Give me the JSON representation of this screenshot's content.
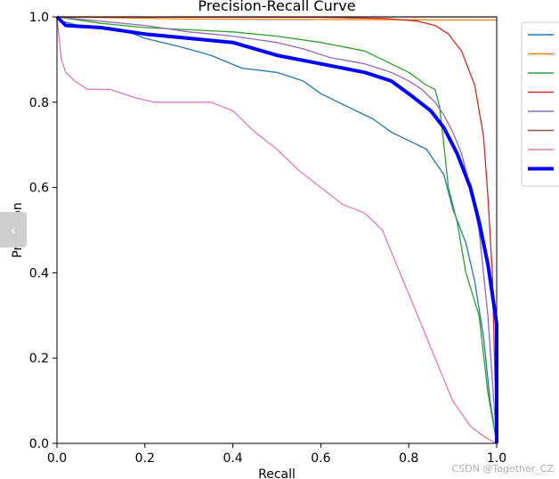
{
  "chart_data": {
    "type": "line",
    "title": "Precision-Recall Curve",
    "xlabel": "Recall",
    "ylabel": "Precision",
    "xlim": [
      0,
      1
    ],
    "ylim": [
      0,
      1
    ],
    "x_ticks": [
      "0.0",
      "0.2",
      "0.4",
      "0.6",
      "0.8",
      "1.0"
    ],
    "y_ticks": [
      "0.0",
      "0.2",
      "0.4",
      "0.6",
      "0.8",
      "1.0"
    ],
    "grid": false,
    "legend_position": "top-right",
    "series": [
      {
        "color": "#1f77b4",
        "points": [
          [
            0,
            1.0
          ],
          [
            0.01,
            0.99
          ],
          [
            0.05,
            0.98
          ],
          [
            0.1,
            0.975
          ],
          [
            0.15,
            0.97
          ],
          [
            0.2,
            0.95
          ],
          [
            0.28,
            0.93
          ],
          [
            0.35,
            0.91
          ],
          [
            0.42,
            0.88
          ],
          [
            0.5,
            0.87
          ],
          [
            0.56,
            0.85
          ],
          [
            0.6,
            0.82
          ],
          [
            0.66,
            0.79
          ],
          [
            0.72,
            0.76
          ],
          [
            0.76,
            0.73
          ],
          [
            0.8,
            0.71
          ],
          [
            0.84,
            0.69
          ],
          [
            0.86,
            0.66
          ],
          [
            0.88,
            0.63
          ],
          [
            0.9,
            0.55
          ],
          [
            0.93,
            0.47
          ],
          [
            0.95,
            0.38
          ],
          [
            0.97,
            0.25
          ],
          [
            0.985,
            0.1
          ],
          [
            1.0,
            0.0
          ]
        ]
      },
      {
        "color": "#ff7f0e",
        "points": [
          [
            0,
            1.0
          ],
          [
            0.3,
            0.995
          ],
          [
            0.6,
            0.994
          ],
          [
            0.9,
            0.993
          ],
          [
            1.0,
            0.993
          ]
        ]
      },
      {
        "color": "#2ca02c",
        "points": [
          [
            0,
            1.0
          ],
          [
            0.1,
            0.985
          ],
          [
            0.2,
            0.975
          ],
          [
            0.3,
            0.97
          ],
          [
            0.4,
            0.965
          ],
          [
            0.5,
            0.955
          ],
          [
            0.6,
            0.94
          ],
          [
            0.7,
            0.92
          ],
          [
            0.76,
            0.89
          ],
          [
            0.8,
            0.87
          ],
          [
            0.84,
            0.84
          ],
          [
            0.86,
            0.83
          ],
          [
            0.87,
            0.79
          ],
          [
            0.88,
            0.7
          ],
          [
            0.89,
            0.6
          ],
          [
            0.91,
            0.52
          ],
          [
            0.93,
            0.4
          ],
          [
            0.96,
            0.3
          ],
          [
            0.98,
            0.12
          ],
          [
            1.0,
            0.0
          ]
        ]
      },
      {
        "color": "#d62728",
        "points": [
          [
            0,
            1.0
          ],
          [
            0.6,
            0.999
          ],
          [
            0.75,
            0.996
          ],
          [
            0.82,
            0.99
          ],
          [
            0.86,
            0.98
          ],
          [
            0.89,
            0.96
          ],
          [
            0.92,
            0.92
          ],
          [
            0.95,
            0.84
          ],
          [
            0.97,
            0.72
          ],
          [
            0.98,
            0.58
          ],
          [
            0.99,
            0.4
          ],
          [
            0.995,
            0.2
          ],
          [
            1.0,
            0.0
          ]
        ]
      },
      {
        "color": "#9467bd",
        "points": [
          [
            0,
            1.0
          ],
          [
            0.1,
            0.99
          ],
          [
            0.2,
            0.98
          ],
          [
            0.3,
            0.965
          ],
          [
            0.4,
            0.955
          ],
          [
            0.5,
            0.94
          ],
          [
            0.56,
            0.925
          ],
          [
            0.62,
            0.905
          ],
          [
            0.7,
            0.89
          ],
          [
            0.76,
            0.87
          ],
          [
            0.8,
            0.85
          ],
          [
            0.83,
            0.83
          ],
          [
            0.86,
            0.8
          ],
          [
            0.88,
            0.77
          ],
          [
            0.9,
            0.73
          ],
          [
            0.92,
            0.68
          ],
          [
            0.94,
            0.6
          ],
          [
            0.96,
            0.5
          ],
          [
            0.98,
            0.3
          ],
          [
            1.0,
            0.0
          ]
        ]
      },
      {
        "color": "#8c564b",
        "points": [
          [
            0,
            1.0
          ],
          [
            0.5,
            1.0
          ],
          [
            1.0,
            1.0
          ]
        ]
      },
      {
        "color": "#e377c2",
        "points": [
          [
            0,
            1.0
          ],
          [
            0.01,
            0.9
          ],
          [
            0.02,
            0.87
          ],
          [
            0.04,
            0.85
          ],
          [
            0.07,
            0.83
          ],
          [
            0.12,
            0.83
          ],
          [
            0.18,
            0.81
          ],
          [
            0.22,
            0.8
          ],
          [
            0.35,
            0.8
          ],
          [
            0.4,
            0.78
          ],
          [
            0.45,
            0.73
          ],
          [
            0.5,
            0.69
          ],
          [
            0.55,
            0.64
          ],
          [
            0.6,
            0.6
          ],
          [
            0.65,
            0.56
          ],
          [
            0.7,
            0.54
          ],
          [
            0.74,
            0.5
          ],
          [
            0.78,
            0.4
          ],
          [
            0.82,
            0.3
          ],
          [
            0.86,
            0.2
          ],
          [
            0.9,
            0.1
          ],
          [
            0.94,
            0.04
          ],
          [
            0.98,
            0.01
          ],
          [
            1.0,
            0.0
          ]
        ]
      },
      {
        "color": "#0000ff",
        "bold": true,
        "points": [
          [
            0,
            1.0
          ],
          [
            0.02,
            0.98
          ],
          [
            0.1,
            0.975
          ],
          [
            0.2,
            0.96
          ],
          [
            0.3,
            0.95
          ],
          [
            0.4,
            0.94
          ],
          [
            0.5,
            0.91
          ],
          [
            0.6,
            0.89
          ],
          [
            0.7,
            0.87
          ],
          [
            0.76,
            0.85
          ],
          [
            0.8,
            0.82
          ],
          [
            0.85,
            0.78
          ],
          [
            0.88,
            0.74
          ],
          [
            0.91,
            0.68
          ],
          [
            0.94,
            0.6
          ],
          [
            0.96,
            0.52
          ],
          [
            0.98,
            0.42
          ],
          [
            0.99,
            0.35
          ],
          [
            1.0,
            0.28
          ],
          [
            1.0,
            0.0
          ]
        ]
      }
    ]
  },
  "ui": {
    "side_tab_glyph": "‹",
    "watermark": "CSDN @Together_CZ"
  }
}
